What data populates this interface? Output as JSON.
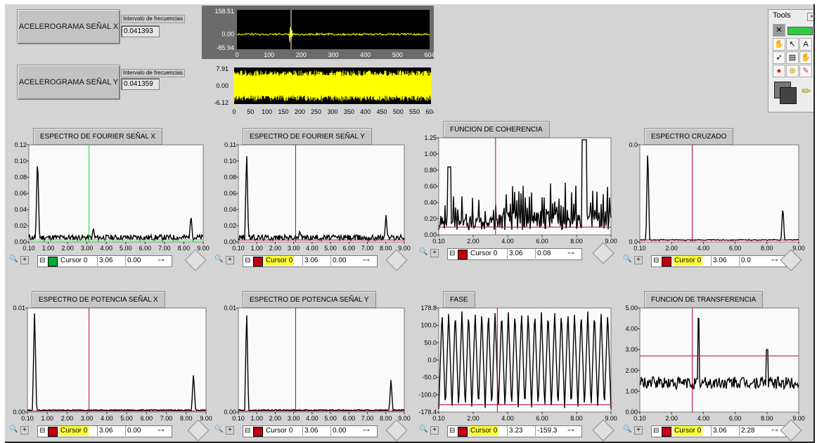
{
  "buttons": {
    "acc_x": "ACELEROGRAMA SEÑAL X",
    "acc_y": "ACELEROGRAMA SEÑAL Y"
  },
  "freq": {
    "label_x": "Intervalo de frecuencias",
    "value_x": "0.041393",
    "label_y": "Intervalo de frecuencias",
    "value_y": "0.041359"
  },
  "wave_x": {
    "yticks": [
      "158.51",
      "0.00",
      "-85.94"
    ],
    "xticks": [
      "0",
      "100",
      "200",
      "300",
      "400",
      "500",
      "604"
    ]
  },
  "wave_y": {
    "yticks": [
      "7.91",
      "0.00",
      "-6.12"
    ],
    "xticks": [
      "0",
      "50",
      "100",
      "150",
      "200",
      "250",
      "300",
      "350",
      "400",
      "450",
      "500",
      "550",
      "604"
    ]
  },
  "tools": {
    "title": "Tools"
  },
  "graphs": [
    {
      "title": "ESPECTRO DE FOURIER SEÑAL X",
      "yticks": [
        "0.12",
        "0.10",
        "0.08",
        "0.06",
        "0.04",
        "0.02",
        "0.00"
      ],
      "xticks": [
        "0.10",
        "1.00",
        "2.00",
        "3.00",
        "4.00",
        "5.00",
        "6.00",
        "7.00",
        "8.00",
        "9.00"
      ],
      "cursor": {
        "name": "Cursor 0",
        "x": "3.06",
        "y": "0.00"
      }
    },
    {
      "title": "ESPECTRO DE FOURIER SEÑAL Y",
      "yticks": [
        "0.11",
        "0.10",
        "0.08",
        "0.06",
        "0.04",
        "0.02",
        "0.00"
      ],
      "xticks": [
        "0.10",
        "1.00",
        "2.00",
        "3.00",
        "4.00",
        "5.00",
        "6.00",
        "7.00",
        "8.00",
        "9.00"
      ],
      "cursor": {
        "name": "Cursor 0",
        "x": "3.06",
        "y": "0.00"
      }
    },
    {
      "title": "FUNCION DE COHERENCIA",
      "yticks": [
        "1.25",
        "1.00",
        "0.80",
        "0.60",
        "0.40",
        "0.20",
        "0.00"
      ],
      "xticks": [
        "0.10",
        "2.00",
        "4.00",
        "6.00",
        "8.00",
        "9.00"
      ],
      "cursor": {
        "name": "Cursor 0",
        "x": "3.06",
        "y": "0.08"
      }
    },
    {
      "title": "ESPECTRO CRUZADO",
      "yticks": [
        "0.0",
        "0.0"
      ],
      "xticks": [
        "0.10",
        "2.00",
        "4.00",
        "6.00",
        "8.00",
        "9.00"
      ],
      "cursor": {
        "name": "Cursor 0",
        "x": "3.06",
        "y": "0.0"
      }
    },
    {
      "title": "ESPECTRO DE POTENCIA SEÑAL X",
      "yticks": [
        "0.01",
        "0.00"
      ],
      "xticks": [
        "0.10",
        "1.00",
        "2.00",
        "3.00",
        "4.00",
        "5.00",
        "6.00",
        "7.00",
        "8.00",
        "9.00"
      ],
      "cursor": {
        "name": "Cursor 0",
        "x": "3.06",
        "y": "0.00"
      }
    },
    {
      "title": "ESPECTRO DE POTENCIA SEÑAL Y",
      "yticks": [
        "0.01",
        "0.00"
      ],
      "xticks": [
        "0.10",
        "1.00",
        "2.00",
        "3.00",
        "4.00",
        "5.00",
        "6.00",
        "7.00",
        "8.00",
        "9.00"
      ],
      "cursor": {
        "name": "Cursor 0",
        "x": "3.06",
        "y": "0.00"
      }
    },
    {
      "title": "FASE",
      "yticks": [
        "178.8",
        "100.0",
        "50.0",
        "0.0",
        "-50.0",
        "-100.0",
        "-178.4"
      ],
      "xticks": [
        "0.10",
        "2.00",
        "4.00",
        "6.00",
        "8.00",
        "9.00"
      ],
      "cursor": {
        "name": "Cursor 0",
        "x": "3.23",
        "y": "-159.3"
      }
    },
    {
      "title": "FUNCION DE TRANSFERENCIA",
      "yticks": [
        "5.00",
        "4.00",
        "3.00",
        "2.00",
        "1.00",
        "0.00"
      ],
      "xticks": [
        "0.10",
        "2.00",
        "4.00",
        "6.00",
        "8.00",
        "9.00"
      ],
      "cursor": {
        "name": "Cursor 0",
        "x": "3.06",
        "y": "2.28"
      }
    }
  ],
  "colors": {
    "wave_trace": "#ffff00",
    "cursor_red": "#b0003a",
    "cursor_green": "#29d629",
    "highlight": "#ffff3c"
  }
}
